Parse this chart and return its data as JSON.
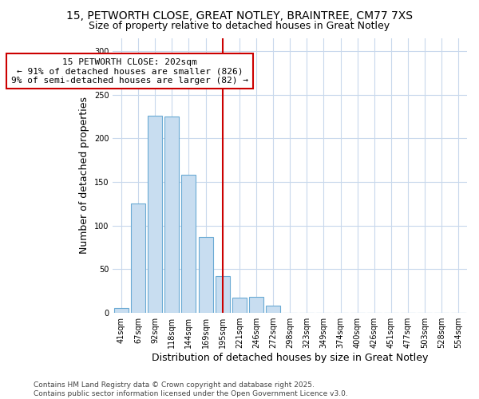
{
  "title_line1": "15, PETWORTH CLOSE, GREAT NOTLEY, BRAINTREE, CM77 7XS",
  "title_line2": "Size of property relative to detached houses in Great Notley",
  "xlabel": "Distribution of detached houses by size in Great Notley",
  "ylabel": "Number of detached properties",
  "categories": [
    "41sqm",
    "67sqm",
    "92sqm",
    "118sqm",
    "144sqm",
    "169sqm",
    "195sqm",
    "221sqm",
    "246sqm",
    "272sqm",
    "298sqm",
    "323sqm",
    "349sqm",
    "374sqm",
    "400sqm",
    "426sqm",
    "451sqm",
    "477sqm",
    "503sqm",
    "528sqm",
    "554sqm"
  ],
  "values": [
    6,
    125,
    226,
    225,
    158,
    87,
    42,
    17,
    18,
    8,
    0,
    0,
    0,
    0,
    0,
    0,
    0,
    0,
    0,
    0,
    0
  ],
  "bar_color": "#c8ddf0",
  "bar_edge_color": "#6aaad4",
  "vline_color": "#cc0000",
  "annotation_title": "15 PETWORTH CLOSE: 202sqm",
  "annotation_line2": "← 91% of detached houses are smaller (826)",
  "annotation_line3": "9% of semi-detached houses are larger (82) →",
  "annotation_box_color": "#cc0000",
  "annotation_box_bg": "#ffffff",
  "ylim": [
    0,
    315
  ],
  "yticks": [
    0,
    50,
    100,
    150,
    200,
    250,
    300
  ],
  "footer_line1": "Contains HM Land Registry data © Crown copyright and database right 2025.",
  "footer_line2": "Contains public sector information licensed under the Open Government Licence v3.0.",
  "bg_color": "#ffffff",
  "plot_bg_color": "#ffffff",
  "grid_color": "#c8d8ec",
  "title_fontsize": 10,
  "subtitle_fontsize": 9,
  "axis_label_fontsize": 9,
  "tick_fontsize": 7,
  "footer_fontsize": 6.5,
  "annotation_fontsize": 8
}
